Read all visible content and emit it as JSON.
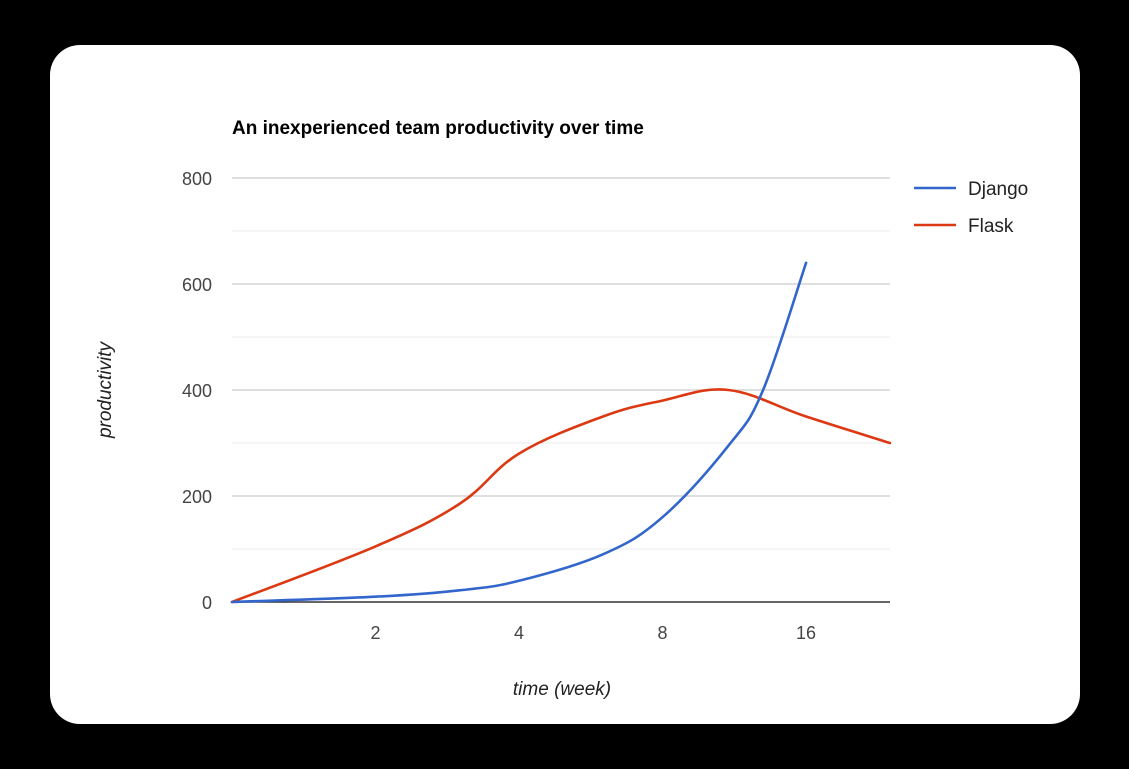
{
  "colors": {
    "page_background": "#000000",
    "card_background": "#ffffff",
    "grid": "#cccccc",
    "grid_minor": "#ebebeb",
    "axis": "#333333"
  },
  "chart_data": {
    "type": "line",
    "title": "An inexperienced team productivity over time",
    "xlabel": "time (week)",
    "ylabel": "productivity",
    "x_scale": "log2",
    "x_ticks": [
      2,
      4,
      8,
      16
    ],
    "x_tick_labels": [
      "2",
      "4",
      "8",
      "16"
    ],
    "xlim": [
      1,
      24
    ],
    "ylim": [
      0,
      800
    ],
    "y_ticks": [
      0,
      200,
      400,
      600,
      800
    ],
    "y_tick_labels": [
      "0",
      "200",
      "400",
      "600",
      "800"
    ],
    "grid": true,
    "legend_position": "right",
    "series": [
      {
        "name": "Django",
        "color": "#3366cc",
        "points": [
          [
            1,
            0
          ],
          [
            2,
            10
          ],
          [
            3,
            22
          ],
          [
            4,
            40
          ],
          [
            6,
            90
          ],
          [
            8,
            160
          ],
          [
            11,
            295
          ],
          [
            13,
            400
          ],
          [
            16,
            640
          ]
        ]
      },
      {
        "name": "Flask",
        "color": "#dc3912",
        "points": [
          [
            1,
            0
          ],
          [
            2,
            105
          ],
          [
            3,
            185
          ],
          [
            4,
            280
          ],
          [
            6,
            350
          ],
          [
            8,
            380
          ],
          [
            11,
            400
          ],
          [
            16,
            350
          ],
          [
            24,
            300
          ]
        ]
      }
    ]
  }
}
